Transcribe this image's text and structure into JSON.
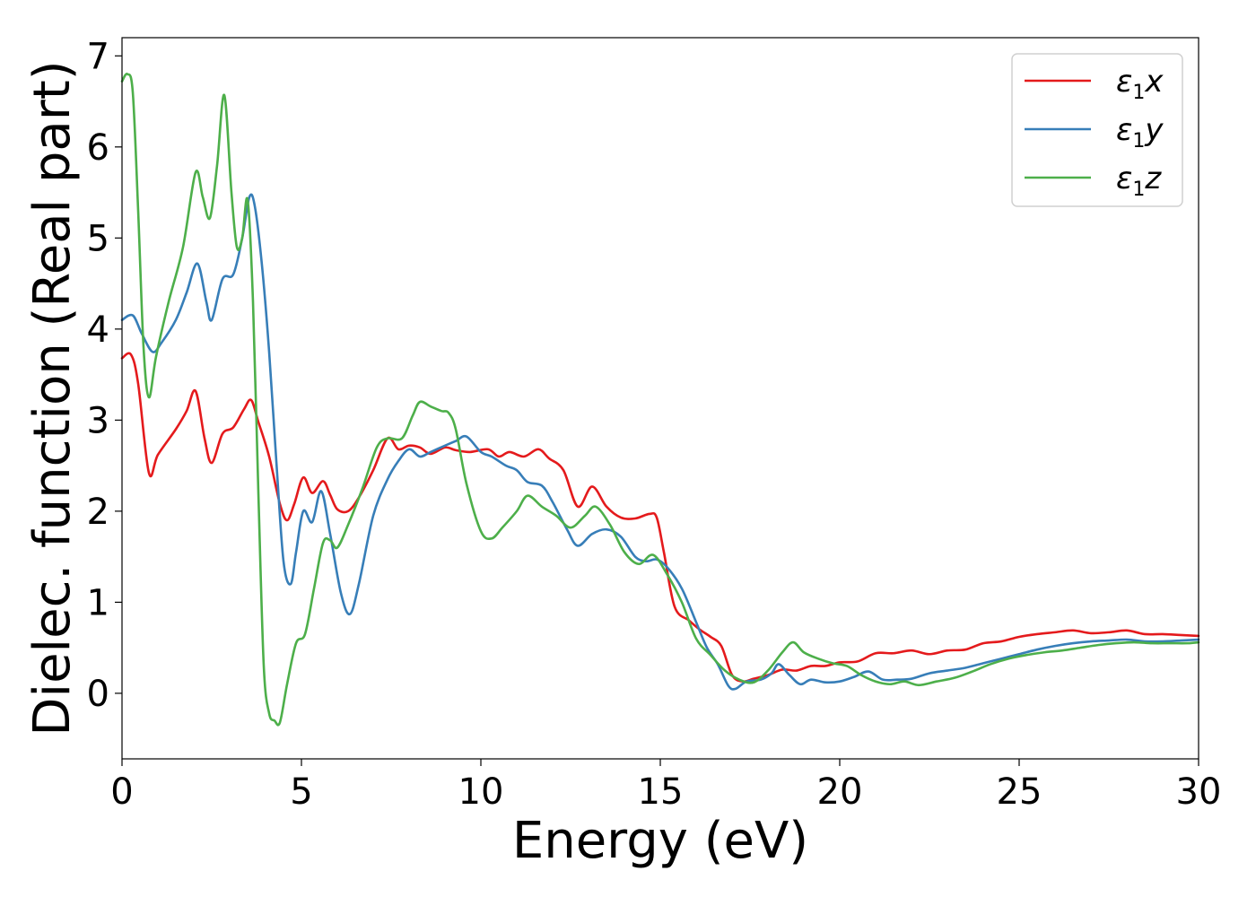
{
  "chart_data": {
    "type": "line",
    "title": "",
    "xlabel": "Energy (eV)",
    "ylabel": "Dielec. function (Real part)",
    "xlim": [
      0,
      30
    ],
    "ylim": [
      -0.72,
      7.2
    ],
    "xticks": [
      0,
      5,
      10,
      15,
      20,
      25,
      30
    ],
    "xtick_labels": [
      "0",
      "5",
      "10",
      "15",
      "20",
      "25",
      "30"
    ],
    "yticks": [
      0,
      1,
      2,
      3,
      4,
      5,
      6,
      7
    ],
    "ytick_labels": [
      "0",
      "1",
      "2",
      "3",
      "4",
      "5",
      "6",
      "7"
    ],
    "grid": false,
    "legend_position": "top-right",
    "series": [
      {
        "name": "ε1x",
        "label_base": "ε",
        "label_sub": "1",
        "label_tail": "x",
        "color": "#e41a1c",
        "points": [
          [
            0,
            3.68
          ],
          [
            0.25,
            3.72
          ],
          [
            0.45,
            3.4
          ],
          [
            0.75,
            2.42
          ],
          [
            1.0,
            2.62
          ],
          [
            1.5,
            2.9
          ],
          [
            1.8,
            3.1
          ],
          [
            2.05,
            3.32
          ],
          [
            2.3,
            2.8
          ],
          [
            2.5,
            2.53
          ],
          [
            2.8,
            2.85
          ],
          [
            3.1,
            2.92
          ],
          [
            3.4,
            3.12
          ],
          [
            3.6,
            3.22
          ],
          [
            3.8,
            2.98
          ],
          [
            4.1,
            2.6
          ],
          [
            4.4,
            2.08
          ],
          [
            4.6,
            1.9
          ],
          [
            4.8,
            2.08
          ],
          [
            5.05,
            2.37
          ],
          [
            5.3,
            2.2
          ],
          [
            5.6,
            2.33
          ],
          [
            5.8,
            2.18
          ],
          [
            6.0,
            2.02
          ],
          [
            6.3,
            2.0
          ],
          [
            6.6,
            2.15
          ],
          [
            7.0,
            2.45
          ],
          [
            7.4,
            2.8
          ],
          [
            7.7,
            2.68
          ],
          [
            8.0,
            2.72
          ],
          [
            8.3,
            2.7
          ],
          [
            8.6,
            2.63
          ],
          [
            9.0,
            2.7
          ],
          [
            9.3,
            2.67
          ],
          [
            9.7,
            2.65
          ],
          [
            10.2,
            2.68
          ],
          [
            10.5,
            2.6
          ],
          [
            10.8,
            2.65
          ],
          [
            11.2,
            2.6
          ],
          [
            11.6,
            2.68
          ],
          [
            11.9,
            2.58
          ],
          [
            12.3,
            2.45
          ],
          [
            12.7,
            2.05
          ],
          [
            13.1,
            2.27
          ],
          [
            13.5,
            2.05
          ],
          [
            13.9,
            1.93
          ],
          [
            14.3,
            1.92
          ],
          [
            14.7,
            1.97
          ],
          [
            14.9,
            1.93
          ],
          [
            15.1,
            1.55
          ],
          [
            15.4,
            0.95
          ],
          [
            15.8,
            0.8
          ],
          [
            16.1,
            0.7
          ],
          [
            16.4,
            0.62
          ],
          [
            16.7,
            0.52
          ],
          [
            17.0,
            0.2
          ],
          [
            17.3,
            0.13
          ],
          [
            17.6,
            0.16
          ],
          [
            18.0,
            0.2
          ],
          [
            18.4,
            0.26
          ],
          [
            18.8,
            0.25
          ],
          [
            19.2,
            0.3
          ],
          [
            19.6,
            0.3
          ],
          [
            20.0,
            0.34
          ],
          [
            20.5,
            0.35
          ],
          [
            21.0,
            0.44
          ],
          [
            21.5,
            0.44
          ],
          [
            22.0,
            0.47
          ],
          [
            22.5,
            0.43
          ],
          [
            23.0,
            0.47
          ],
          [
            23.5,
            0.48
          ],
          [
            24.0,
            0.55
          ],
          [
            24.5,
            0.57
          ],
          [
            25.0,
            0.62
          ],
          [
            25.5,
            0.65
          ],
          [
            26.0,
            0.67
          ],
          [
            26.5,
            0.69
          ],
          [
            27.0,
            0.66
          ],
          [
            27.5,
            0.67
          ],
          [
            28.0,
            0.69
          ],
          [
            28.5,
            0.65
          ],
          [
            29.0,
            0.65
          ],
          [
            29.5,
            0.64
          ],
          [
            30.0,
            0.63
          ]
        ]
      },
      {
        "name": "ε1y",
        "label_base": "ε",
        "label_sub": "1",
        "label_tail": "y",
        "color": "#377eb8",
        "points": [
          [
            0,
            4.1
          ],
          [
            0.3,
            4.15
          ],
          [
            0.55,
            3.95
          ],
          [
            0.85,
            3.75
          ],
          [
            1.1,
            3.85
          ],
          [
            1.5,
            4.1
          ],
          [
            1.8,
            4.4
          ],
          [
            2.1,
            4.72
          ],
          [
            2.35,
            4.3
          ],
          [
            2.5,
            4.1
          ],
          [
            2.8,
            4.55
          ],
          [
            3.1,
            4.6
          ],
          [
            3.35,
            5.0
          ],
          [
            3.55,
            5.45
          ],
          [
            3.7,
            5.35
          ],
          [
            3.9,
            4.7
          ],
          [
            4.1,
            3.75
          ],
          [
            4.3,
            2.55
          ],
          [
            4.5,
            1.45
          ],
          [
            4.7,
            1.2
          ],
          [
            4.85,
            1.55
          ],
          [
            5.05,
            2.0
          ],
          [
            5.3,
            1.88
          ],
          [
            5.55,
            2.22
          ],
          [
            5.8,
            1.75
          ],
          [
            6.1,
            1.1
          ],
          [
            6.35,
            0.87
          ],
          [
            6.6,
            1.2
          ],
          [
            7.0,
            1.95
          ],
          [
            7.4,
            2.35
          ],
          [
            7.7,
            2.55
          ],
          [
            8.0,
            2.68
          ],
          [
            8.3,
            2.6
          ],
          [
            8.6,
            2.65
          ],
          [
            9.0,
            2.72
          ],
          [
            9.3,
            2.77
          ],
          [
            9.6,
            2.82
          ],
          [
            10.0,
            2.65
          ],
          [
            10.3,
            2.6
          ],
          [
            10.7,
            2.5
          ],
          [
            11.0,
            2.45
          ],
          [
            11.3,
            2.32
          ],
          [
            11.7,
            2.28
          ],
          [
            12.0,
            2.1
          ],
          [
            12.4,
            1.8
          ],
          [
            12.7,
            1.62
          ],
          [
            13.1,
            1.75
          ],
          [
            13.5,
            1.8
          ],
          [
            13.9,
            1.72
          ],
          [
            14.3,
            1.5
          ],
          [
            14.6,
            1.45
          ],
          [
            14.9,
            1.47
          ],
          [
            15.2,
            1.38
          ],
          [
            15.6,
            1.15
          ],
          [
            16.0,
            0.78
          ],
          [
            16.3,
            0.5
          ],
          [
            16.6,
            0.32
          ],
          [
            16.9,
            0.08
          ],
          [
            17.1,
            0.05
          ],
          [
            17.4,
            0.13
          ],
          [
            17.8,
            0.15
          ],
          [
            18.1,
            0.22
          ],
          [
            18.3,
            0.32
          ],
          [
            18.6,
            0.2
          ],
          [
            18.9,
            0.1
          ],
          [
            19.2,
            0.15
          ],
          [
            19.6,
            0.12
          ],
          [
            20.0,
            0.13
          ],
          [
            20.4,
            0.18
          ],
          [
            20.8,
            0.24
          ],
          [
            21.2,
            0.15
          ],
          [
            21.6,
            0.15
          ],
          [
            22.0,
            0.16
          ],
          [
            22.5,
            0.22
          ],
          [
            23.0,
            0.25
          ],
          [
            23.5,
            0.28
          ],
          [
            24.0,
            0.33
          ],
          [
            24.5,
            0.38
          ],
          [
            25.0,
            0.43
          ],
          [
            25.5,
            0.48
          ],
          [
            26.0,
            0.52
          ],
          [
            26.5,
            0.55
          ],
          [
            27.0,
            0.57
          ],
          [
            27.5,
            0.58
          ],
          [
            28.0,
            0.59
          ],
          [
            28.5,
            0.57
          ],
          [
            29.0,
            0.57
          ],
          [
            29.5,
            0.58
          ],
          [
            30.0,
            0.59
          ]
        ]
      },
      {
        "name": "ε1z",
        "label_base": "ε",
        "label_sub": "1",
        "label_tail": "z",
        "color": "#4daf4a",
        "points": [
          [
            0,
            6.72
          ],
          [
            0.15,
            6.8
          ],
          [
            0.3,
            6.6
          ],
          [
            0.45,
            5.3
          ],
          [
            0.6,
            3.8
          ],
          [
            0.75,
            3.25
          ],
          [
            0.95,
            3.7
          ],
          [
            1.3,
            4.3
          ],
          [
            1.7,
            4.9
          ],
          [
            2.05,
            5.72
          ],
          [
            2.25,
            5.45
          ],
          [
            2.45,
            5.22
          ],
          [
            2.65,
            5.8
          ],
          [
            2.85,
            6.57
          ],
          [
            3.05,
            5.5
          ],
          [
            3.2,
            4.9
          ],
          [
            3.35,
            5.0
          ],
          [
            3.5,
            5.42
          ],
          [
            3.65,
            4.3
          ],
          [
            3.8,
            2.2
          ],
          [
            3.95,
            0.3
          ],
          [
            4.1,
            -0.22
          ],
          [
            4.25,
            -0.3
          ],
          [
            4.4,
            -0.32
          ],
          [
            4.6,
            0.1
          ],
          [
            4.85,
            0.55
          ],
          [
            5.1,
            0.65
          ],
          [
            5.35,
            1.15
          ],
          [
            5.6,
            1.65
          ],
          [
            5.8,
            1.68
          ],
          [
            6.0,
            1.6
          ],
          [
            6.3,
            1.85
          ],
          [
            6.7,
            2.25
          ],
          [
            7.1,
            2.7
          ],
          [
            7.4,
            2.8
          ],
          [
            7.8,
            2.8
          ],
          [
            8.1,
            3.05
          ],
          [
            8.3,
            3.2
          ],
          [
            8.6,
            3.15
          ],
          [
            8.9,
            3.1
          ],
          [
            9.1,
            3.08
          ],
          [
            9.3,
            2.9
          ],
          [
            9.6,
            2.3
          ],
          [
            10.0,
            1.78
          ],
          [
            10.3,
            1.7
          ],
          [
            10.6,
            1.82
          ],
          [
            11.0,
            2.0
          ],
          [
            11.3,
            2.17
          ],
          [
            11.7,
            2.05
          ],
          [
            12.1,
            1.95
          ],
          [
            12.5,
            1.82
          ],
          [
            12.9,
            1.95
          ],
          [
            13.2,
            2.05
          ],
          [
            13.6,
            1.85
          ],
          [
            14.0,
            1.55
          ],
          [
            14.4,
            1.42
          ],
          [
            14.8,
            1.52
          ],
          [
            15.2,
            1.3
          ],
          [
            15.6,
            1.0
          ],
          [
            16.0,
            0.6
          ],
          [
            16.4,
            0.42
          ],
          [
            16.8,
            0.25
          ],
          [
            17.2,
            0.15
          ],
          [
            17.6,
            0.12
          ],
          [
            18.0,
            0.25
          ],
          [
            18.4,
            0.45
          ],
          [
            18.7,
            0.56
          ],
          [
            19.0,
            0.45
          ],
          [
            19.4,
            0.38
          ],
          [
            19.8,
            0.33
          ],
          [
            20.2,
            0.3
          ],
          [
            20.6,
            0.2
          ],
          [
            21.0,
            0.13
          ],
          [
            21.4,
            0.1
          ],
          [
            21.8,
            0.13
          ],
          [
            22.2,
            0.09
          ],
          [
            22.7,
            0.13
          ],
          [
            23.2,
            0.17
          ],
          [
            23.7,
            0.24
          ],
          [
            24.2,
            0.32
          ],
          [
            24.7,
            0.38
          ],
          [
            25.2,
            0.42
          ],
          [
            25.7,
            0.45
          ],
          [
            26.2,
            0.47
          ],
          [
            26.7,
            0.5
          ],
          [
            27.2,
            0.53
          ],
          [
            27.7,
            0.55
          ],
          [
            28.2,
            0.56
          ],
          [
            28.7,
            0.55
          ],
          [
            29.2,
            0.55
          ],
          [
            29.7,
            0.55
          ],
          [
            30.0,
            0.56
          ]
        ]
      }
    ]
  }
}
